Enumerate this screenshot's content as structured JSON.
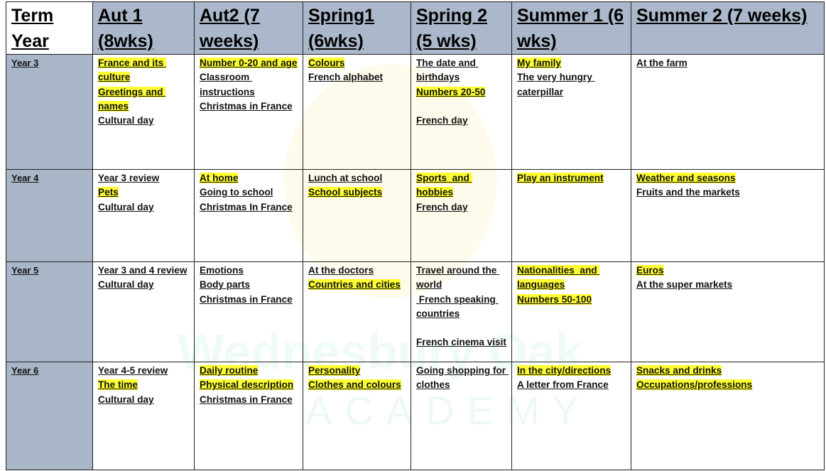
{
  "watermark": {
    "line1": "Wednesbury Oak",
    "line2": "ACADEMY"
  },
  "header": {
    "corner": [
      "Term",
      "Year"
    ],
    "terms": [
      "Aut 1 (8wks)",
      "Aut2 (7 weeks)",
      "Spring1 (6wks)",
      "Spring 2 (5 wks)",
      "Summer 1 (6 wks)",
      "Summer 2 (7 weeks)"
    ]
  },
  "highlight_color": "#ffff33",
  "header_bg": "#a9b6c8",
  "rows": [
    {
      "year": "Year 3",
      "cells": [
        [
          {
            "t": "France and its culture",
            "hl": true
          },
          {
            "t": "Greetings and names",
            "hl": true
          },
          {
            "t": "Cultural day",
            "hl": false
          }
        ],
        [
          {
            "t": "Number 0-20 and age",
            "hl": true
          },
          {
            "t": "Classroom instructions",
            "hl": false
          },
          {
            "t": "Christmas in France",
            "hl": false
          }
        ],
        [
          {
            "t": "Colours",
            "hl": true
          },
          {
            "t": "French alphabet",
            "hl": false
          }
        ],
        [
          {
            "t": "The date and birthdays",
            "hl": false
          },
          {
            "t": "Numbers 20-50",
            "hl": true
          },
          {
            "t": "",
            "hl": false
          },
          {
            "t": "French day",
            "hl": false
          }
        ],
        [
          {
            "t": "My family",
            "hl": true
          },
          {
            "t": "The very hungry caterpillar",
            "hl": false
          }
        ],
        [
          {
            "t": "At the farm",
            "hl": false
          }
        ]
      ]
    },
    {
      "year": "Year 4",
      "cells": [
        [
          {
            "t": "Year 3 review",
            "hl": false
          },
          {
            "t": "Pets",
            "hl": true
          },
          {
            "t": "Cultural day",
            "hl": false
          }
        ],
        [
          {
            "t": "At home",
            "hl": true
          },
          {
            "t": "Going to school",
            "hl": false
          },
          {
            "t": "Christmas In France",
            "hl": false
          }
        ],
        [
          {
            "t": "Lunch at school",
            "hl": false
          },
          {
            "t": "School subjects",
            "hl": true
          }
        ],
        [
          {
            "t": "Sports  and hobbies",
            "hl": true
          },
          {
            "t": "French day",
            "hl": false
          }
        ],
        [
          {
            "t": "Play an instrument",
            "hl": true
          }
        ],
        [
          {
            "t": "Weather and seasons",
            "hl": true
          },
          {
            "t": "Fruits and the markets",
            "hl": false
          }
        ]
      ]
    },
    {
      "year": "Year 5",
      "cells": [
        [
          {
            "t": "Year 3 and 4 review",
            "hl": false
          },
          {
            "t": "Cultural day",
            "hl": false
          }
        ],
        [
          {
            "t": "Emotions",
            "hl": false
          },
          {
            "t": "Body parts",
            "hl": false
          },
          {
            "t": "Christmas in France",
            "hl": false
          }
        ],
        [
          {
            "t": "At the doctors",
            "hl": false
          },
          {
            "t": "Countries and cities",
            "hl": true
          }
        ],
        [
          {
            "t": "Travel around the world",
            "hl": false
          },
          {
            "t": " French speaking countries",
            "hl": false
          },
          {
            "t": "",
            "hl": false
          },
          {
            "t": "French cinema visit",
            "hl": false
          }
        ],
        [
          {
            "t": "Nationalities  and languages",
            "hl": true
          },
          {
            "t": "Numbers 50-100",
            "hl": true
          }
        ],
        [
          {
            "t": "Euros",
            "hl": true
          },
          {
            "t": "At the super markets",
            "hl": false
          }
        ]
      ]
    },
    {
      "year": "Year 6",
      "cells": [
        [
          {
            "t": "Year 4-5 review",
            "hl": false
          },
          {
            "t": "The time",
            "hl": true
          },
          {
            "t": "Cultural day",
            "hl": false
          }
        ],
        [
          {
            "t": "Daily routine",
            "hl": true
          },
          {
            "t": "Physical description",
            "hl": true
          },
          {
            "t": "Christmas in France",
            "hl": false
          }
        ],
        [
          {
            "t": "Personality",
            "hl": true
          },
          {
            "t": "Clothes and colours",
            "hl": true
          }
        ],
        [
          {
            "t": "Going shopping for clothes",
            "hl": false
          }
        ],
        [
          {
            "t": "In the city/directions",
            "hl": true
          },
          {
            "t": "A letter from France",
            "hl": false
          }
        ],
        [
          {
            "t": "Snacks and drinks",
            "hl": true
          },
          {
            "t": "Occupations/professions",
            "hl": true
          }
        ]
      ]
    }
  ]
}
